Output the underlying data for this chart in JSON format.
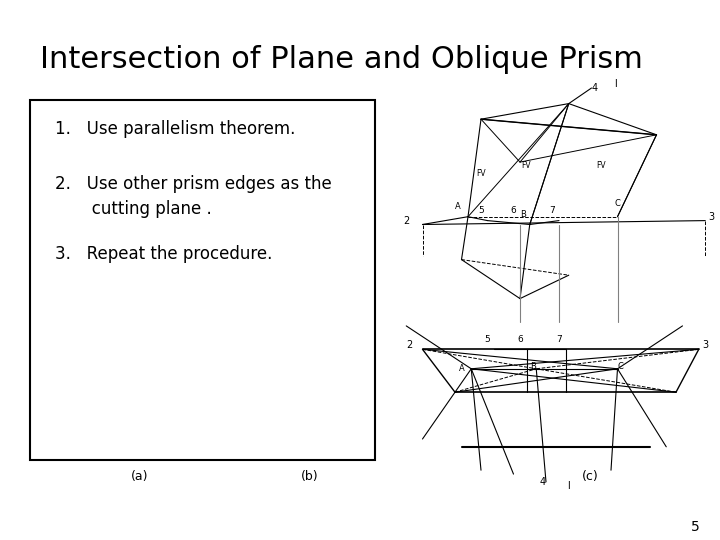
{
  "title": "Intersection of Plane and Oblique Prism",
  "title_fontsize": 22,
  "bg_color": "#ffffff",
  "text_color": "#000000",
  "steps": [
    "1.   Use parallelism theorem.",
    "2.   Use other prism edges as the\n       cutting plane .",
    "3.   Repeat the procedure."
  ],
  "label_a": "(a)",
  "label_b": "(b)",
  "label_c": "(c)",
  "page_num": "5"
}
